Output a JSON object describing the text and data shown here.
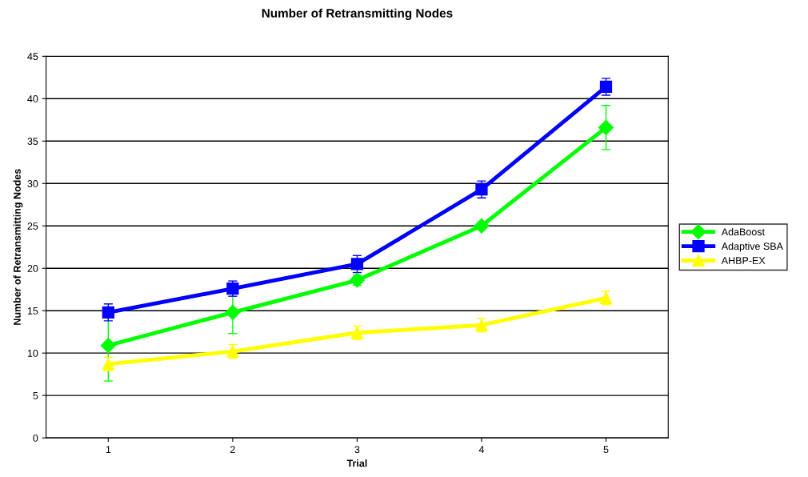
{
  "chart_data": {
    "type": "line",
    "title": "Number of Retransmitting Nodes",
    "xlabel": "Trial",
    "ylabel": "Number of Retransmitting Nodes",
    "categories": [
      "1",
      "2",
      "3",
      "4",
      "5"
    ],
    "series": [
      {
        "name": "AdaBoost",
        "color": "#00ff00",
        "marker": "diamond",
        "values": [
          10.9,
          14.8,
          18.6,
          25.0,
          36.6
        ],
        "errors": [
          4.2,
          2.5,
          0.6,
          0.3,
          2.6
        ]
      },
      {
        "name": "Adaptive SBA",
        "color": "#0000ff",
        "marker": "square",
        "values": [
          14.8,
          17.6,
          20.5,
          29.3,
          41.4
        ],
        "errors": [
          1.0,
          0.9,
          1.0,
          1.0,
          1.0
        ]
      },
      {
        "name": "AHBP-EX",
        "color": "#ffff00",
        "marker": "triangle",
        "values": [
          8.7,
          10.2,
          12.4,
          13.3,
          16.5
        ],
        "errors": [
          0.8,
          0.8,
          0.8,
          0.8,
          0.8
        ]
      }
    ],
    "ylim": [
      0,
      45
    ],
    "yticks": [
      0,
      5,
      10,
      15,
      20,
      25,
      30,
      35,
      40,
      45
    ],
    "grid": "y",
    "legend": "right",
    "line_style": "solid"
  }
}
